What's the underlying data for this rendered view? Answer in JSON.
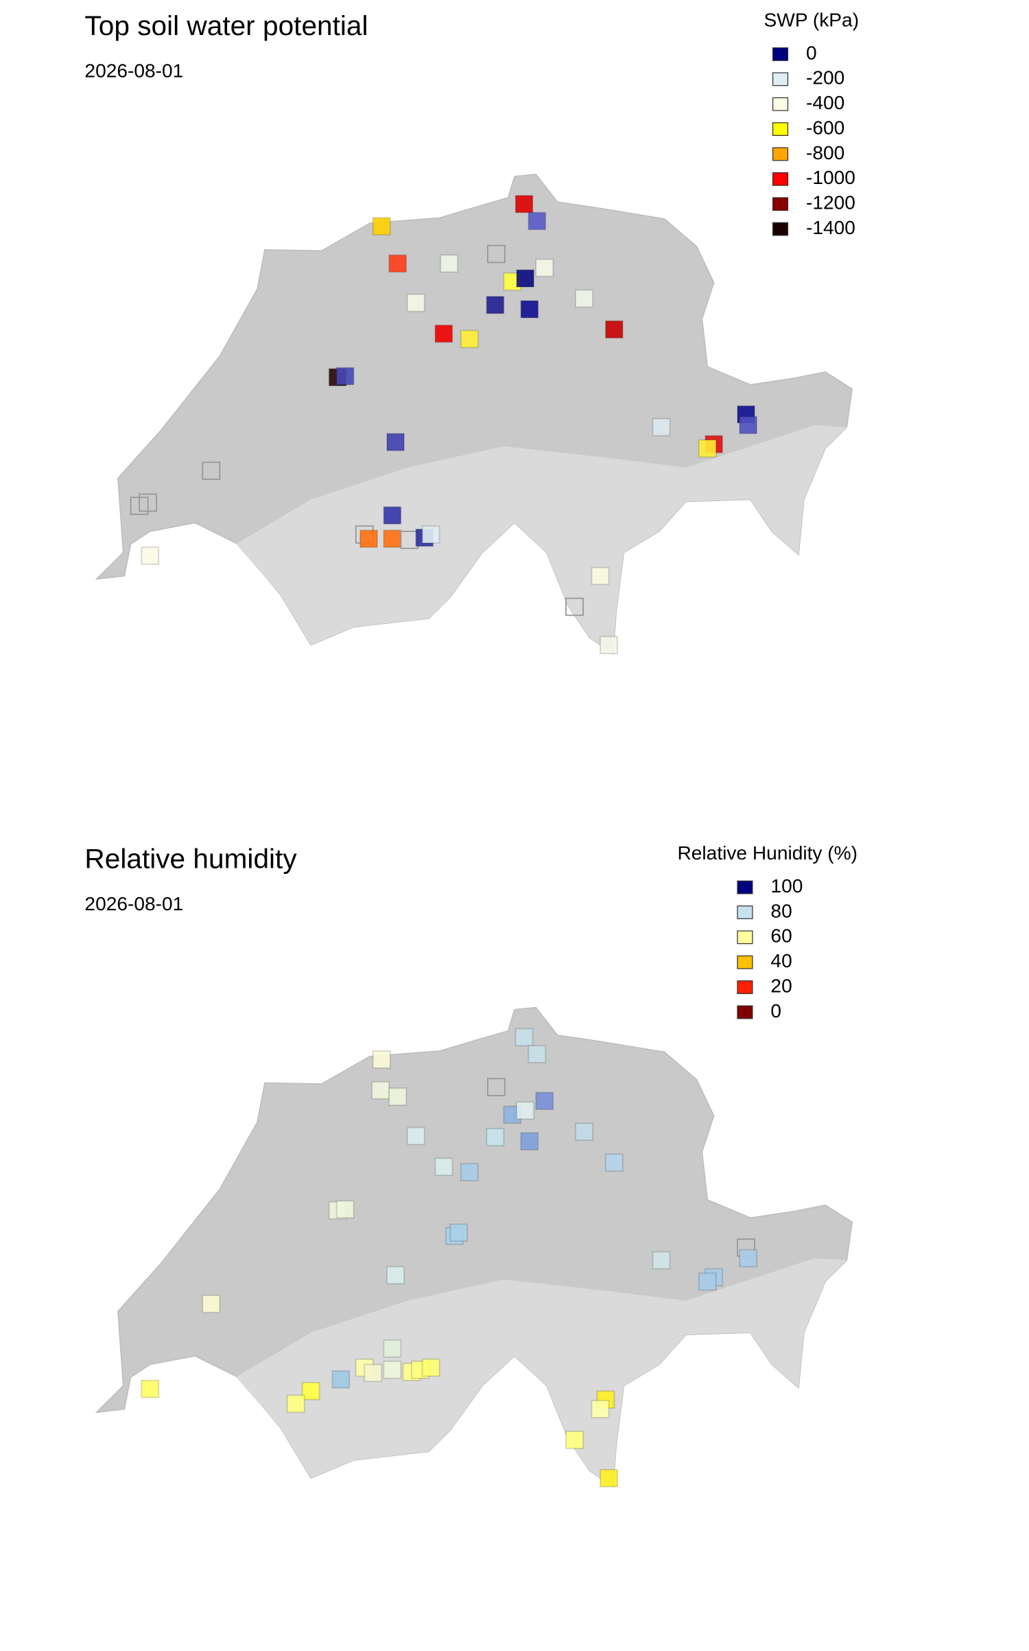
{
  "panels": [
    {
      "title": "Top soil water potential",
      "date": "2026-08-01",
      "legend": {
        "title": "SWP (kPa)",
        "items": [
          {
            "value": 0,
            "color": "#00007f"
          },
          {
            "value": -200,
            "color": "#dfeef4"
          },
          {
            "value": -400,
            "color": "#fbfbe6"
          },
          {
            "value": -600,
            "color": "#ffff00"
          },
          {
            "value": -800,
            "color": "#ffa500"
          },
          {
            "value": -1000,
            "color": "#ff0000"
          },
          {
            "value": -1200,
            "color": "#8b0000"
          },
          {
            "value": -1400,
            "color": "#1a0000"
          }
        ]
      }
    },
    {
      "title": "Relative humidity",
      "date": "2026-08-01",
      "legend": {
        "title": "Relative Hunidity (%)",
        "items": [
          {
            "value": 100,
            "color": "#00007f"
          },
          {
            "value": 80,
            "color": "#c6e2ee"
          },
          {
            "value": 60,
            "color": "#ffffa0"
          },
          {
            "value": 40,
            "color": "#ffc000"
          },
          {
            "value": 20,
            "color": "#ff2000"
          },
          {
            "value": 0,
            "color": "#800000"
          }
        ]
      }
    }
  ]
}
